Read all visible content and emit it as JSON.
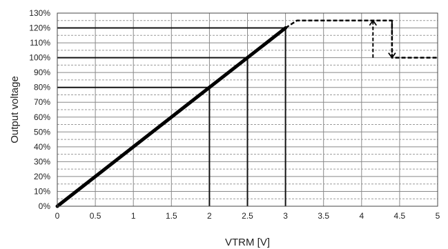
{
  "chart_data": {
    "type": "line",
    "title": "",
    "xlabel": "VTRM [V]",
    "ylabel": "Output voltage",
    "xlim": [
      0,
      5
    ],
    "ylim": [
      0,
      130
    ],
    "x_ticks": [
      0,
      0.5,
      1,
      1.5,
      2,
      2.5,
      3,
      3.5,
      4,
      4.5,
      5
    ],
    "y_ticks": [
      0,
      10,
      20,
      30,
      40,
      50,
      60,
      70,
      80,
      90,
      100,
      110,
      120,
      130
    ],
    "y_tick_suffix": "%",
    "grid": {
      "vertical": "solid",
      "horizontal_major": "solid",
      "horizontal_minor": "dashed"
    },
    "series": [
      {
        "style": "solid-thick",
        "color": "#000000",
        "x": [
          0,
          3
        ],
        "y": [
          0,
          120
        ]
      },
      {
        "style": "dashed",
        "color": "#000000",
        "x": [
          3,
          3.15,
          4.4,
          4.4,
          5
        ],
        "y": [
          120,
          125,
          125,
          100,
          100
        ]
      }
    ],
    "reference_lines": [
      {
        "type": "horizontal",
        "y": 120,
        "x_from": 0,
        "x_to": 3
      },
      {
        "type": "horizontal",
        "y": 100,
        "x_from": 0,
        "x_to": 2.5
      },
      {
        "type": "horizontal",
        "y": 80,
        "x_from": 0,
        "x_to": 2
      },
      {
        "type": "vertical",
        "x": 2,
        "y_from": 0,
        "y_to": 80
      },
      {
        "type": "vertical",
        "x": 2.5,
        "y_from": 0,
        "y_to": 100
      },
      {
        "type": "vertical",
        "x": 3,
        "y_from": 0,
        "y_to": 120
      }
    ],
    "arrows": [
      {
        "x": 4.15,
        "from": 100,
        "to": 125,
        "direction": "up",
        "style": "dashed"
      },
      {
        "x": 4.4,
        "from": 125,
        "to": 100,
        "direction": "down",
        "style": "dashed"
      }
    ]
  }
}
